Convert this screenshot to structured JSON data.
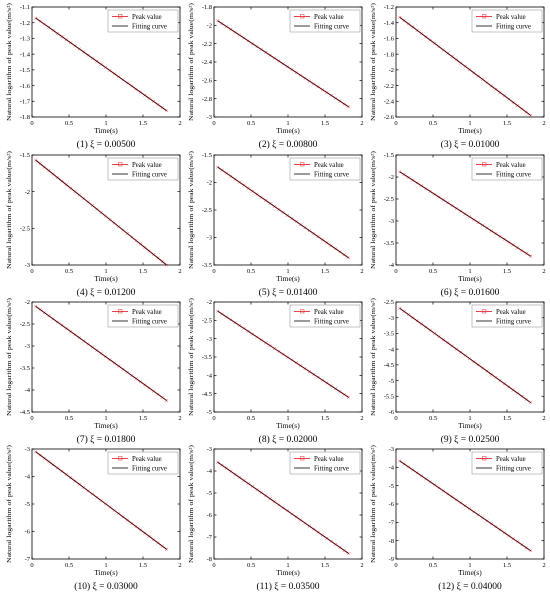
{
  "figure": {
    "xlabel": "Time(s)",
    "ylabel": "Natural logarithm of peak value(m/s²)",
    "legend": {
      "position": "top-right",
      "peak_label": "Peak value",
      "fit_label": "Fitting curve"
    },
    "colors": {
      "peak": "#e8404a",
      "fit": "#000000",
      "axes": "#000000"
    }
  },
  "chart_data": [
    {
      "type": "line",
      "caption": "(1) ξ = 0.00500",
      "xlim": [
        0,
        2
      ],
      "ylim": [
        -1.8,
        -1.1
      ],
      "xticks": [
        "0",
        "0.5",
        "1",
        "1.5",
        "2"
      ],
      "yticks": [
        "-1.8",
        "-1.7",
        "-1.6",
        "-1.5",
        "-1.4",
        "-1.3",
        "-1.2",
        "-1.1"
      ],
      "series": [
        {
          "name": "Peak value",
          "x": [
            0.05,
            1.82
          ],
          "y": [
            -1.17,
            -1.76
          ]
        },
        {
          "name": "Fitting curve",
          "x": [
            0.05,
            1.82
          ],
          "y": [
            -1.17,
            -1.76
          ]
        }
      ]
    },
    {
      "type": "line",
      "caption": "(2) ξ = 0.00800",
      "xlim": [
        0,
        2
      ],
      "ylim": [
        -3,
        -1.8
      ],
      "xticks": [
        "0",
        "0.5",
        "1",
        "1.5",
        "2"
      ],
      "yticks": [
        "-3",
        "-2.8",
        "-2.6",
        "-2.4",
        "-2.2",
        "-2",
        "-1.8"
      ],
      "series": [
        {
          "name": "Peak value",
          "x": [
            0.05,
            1.82
          ],
          "y": [
            -1.95,
            -2.89
          ]
        },
        {
          "name": "Fitting curve",
          "x": [
            0.05,
            1.82
          ],
          "y": [
            -1.95,
            -2.89
          ]
        }
      ]
    },
    {
      "type": "line",
      "caption": "(3) ξ = 0.01000",
      "xlim": [
        0,
        2
      ],
      "ylim": [
        -2.6,
        -1.2
      ],
      "xticks": [
        "0",
        "0.5",
        "1",
        "1.5",
        "2"
      ],
      "yticks": [
        "-2.6",
        "-2.4",
        "-2.2",
        "-2",
        "-1.8",
        "-1.6",
        "-1.4",
        "-1.2"
      ],
      "series": [
        {
          "name": "Peak value",
          "x": [
            0.05,
            1.82
          ],
          "y": [
            -1.33,
            -2.58
          ]
        },
        {
          "name": "Fitting curve",
          "x": [
            0.05,
            1.82
          ],
          "y": [
            -1.33,
            -2.58
          ]
        }
      ]
    },
    {
      "type": "line",
      "caption": "(4) ξ = 0.01200",
      "xlim": [
        0,
        2
      ],
      "ylim": [
        -3,
        -1.5
      ],
      "xticks": [
        "0",
        "0.5",
        "1",
        "1.5",
        "2"
      ],
      "yticks": [
        "-3",
        "-2.5",
        "-2",
        "-1.5"
      ],
      "series": [
        {
          "name": "Peak value",
          "x": [
            0.05,
            1.82
          ],
          "y": [
            -1.57,
            -3.0
          ]
        },
        {
          "name": "Fitting curve",
          "x": [
            0.05,
            1.82
          ],
          "y": [
            -1.57,
            -3.0
          ]
        }
      ]
    },
    {
      "type": "line",
      "caption": "(5) ξ = 0.01400",
      "xlim": [
        0,
        2
      ],
      "ylim": [
        -3.5,
        -1.5
      ],
      "xticks": [
        "0",
        "0.5",
        "1",
        "1.5",
        "2"
      ],
      "yticks": [
        "-3.5",
        "-3",
        "-2.5",
        "-2",
        "-1.5"
      ],
      "series": [
        {
          "name": "Peak value",
          "x": [
            0.05,
            1.82
          ],
          "y": [
            -1.72,
            -3.37
          ]
        },
        {
          "name": "Fitting curve",
          "x": [
            0.05,
            1.82
          ],
          "y": [
            -1.72,
            -3.37
          ]
        }
      ]
    },
    {
      "type": "line",
      "caption": "(6) ξ = 0.01600",
      "xlim": [
        0,
        2
      ],
      "ylim": [
        -4,
        -1.5
      ],
      "xticks": [
        "0",
        "0.5",
        "1",
        "1.5",
        "2"
      ],
      "yticks": [
        "-4",
        "-3.5",
        "-3",
        "-2.5",
        "-2",
        "-1.5"
      ],
      "series": [
        {
          "name": "Peak value",
          "x": [
            0.05,
            1.82
          ],
          "y": [
            -1.88,
            -3.8
          ]
        },
        {
          "name": "Fitting curve",
          "x": [
            0.05,
            1.82
          ],
          "y": [
            -1.88,
            -3.8
          ]
        }
      ]
    },
    {
      "type": "line",
      "caption": "(7) ξ = 0.01800",
      "xlim": [
        0,
        2
      ],
      "ylim": [
        -4.5,
        -2
      ],
      "xticks": [
        "0",
        "0.5",
        "1",
        "1.5",
        "2"
      ],
      "yticks": [
        "-4.5",
        "-4",
        "-3.5",
        "-3",
        "-2.5",
        "-2"
      ],
      "series": [
        {
          "name": "Peak value",
          "x": [
            0.05,
            1.82
          ],
          "y": [
            -2.1,
            -4.24
          ]
        },
        {
          "name": "Fitting curve",
          "x": [
            0.05,
            1.82
          ],
          "y": [
            -2.1,
            -4.24
          ]
        }
      ]
    },
    {
      "type": "line",
      "caption": "(8) ξ = 0.02000",
      "xlim": [
        0,
        2
      ],
      "ylim": [
        -5,
        -2
      ],
      "xticks": [
        "0",
        "0.5",
        "1",
        "1.5",
        "2"
      ],
      "yticks": [
        "-5",
        "-4.5",
        "-4",
        "-3.5",
        "-3",
        "-2.5",
        "-2"
      ],
      "series": [
        {
          "name": "Peak value",
          "x": [
            0.05,
            1.82
          ],
          "y": [
            -2.25,
            -4.6
          ]
        },
        {
          "name": "Fitting curve",
          "x": [
            0.05,
            1.82
          ],
          "y": [
            -2.25,
            -4.6
          ]
        }
      ]
    },
    {
      "type": "line",
      "caption": "(9) ξ = 0.02500",
      "xlim": [
        0,
        2
      ],
      "ylim": [
        -6,
        -2.5
      ],
      "xticks": [
        "0",
        "0.5",
        "1",
        "1.5",
        "2"
      ],
      "yticks": [
        "-6",
        "-5.5",
        "-5",
        "-4.5",
        "-4",
        "-3.5",
        "-3",
        "-2.5"
      ],
      "series": [
        {
          "name": "Peak value",
          "x": [
            0.05,
            1.82
          ],
          "y": [
            -2.7,
            -5.7
          ]
        },
        {
          "name": "Fitting curve",
          "x": [
            0.05,
            1.82
          ],
          "y": [
            -2.7,
            -5.7
          ]
        }
      ]
    },
    {
      "type": "line",
      "caption": "(10) ξ = 0.03000",
      "xlim": [
        0,
        2
      ],
      "ylim": [
        -7,
        -3
      ],
      "xticks": [
        "0",
        "0.5",
        "1",
        "1.5",
        "2"
      ],
      "yticks": [
        "-7",
        "-6",
        "-5",
        "-4",
        "-3"
      ],
      "series": [
        {
          "name": "Peak value",
          "x": [
            0.05,
            1.82
          ],
          "y": [
            -3.1,
            -6.65
          ]
        },
        {
          "name": "Fitting curve",
          "x": [
            0.05,
            1.82
          ],
          "y": [
            -3.1,
            -6.65
          ]
        }
      ]
    },
    {
      "type": "line",
      "caption": "(11) ξ = 0.03500",
      "xlim": [
        0,
        2
      ],
      "ylim": [
        -8,
        -3
      ],
      "xticks": [
        "0",
        "0.5",
        "1",
        "1.5",
        "2"
      ],
      "yticks": [
        "-8",
        "-7",
        "-6",
        "-5",
        "-4",
        "-3"
      ],
      "series": [
        {
          "name": "Peak value",
          "x": [
            0.05,
            1.82
          ],
          "y": [
            -3.6,
            -7.75
          ]
        },
        {
          "name": "Fitting curve",
          "x": [
            0.05,
            1.82
          ],
          "y": [
            -3.6,
            -7.75
          ]
        }
      ]
    },
    {
      "type": "line",
      "caption": "(12) ξ = 0.04000",
      "xlim": [
        0,
        2
      ],
      "ylim": [
        -9,
        -3
      ],
      "xticks": [
        "0",
        "0.5",
        "1",
        "1.5",
        "2"
      ],
      "yticks": [
        "-9",
        "-8",
        "-7",
        "-6",
        "-5",
        "-4",
        "-3"
      ],
      "series": [
        {
          "name": "Peak value",
          "x": [
            0.05,
            1.82
          ],
          "y": [
            -3.65,
            -8.55
          ]
        },
        {
          "name": "Fitting curve",
          "x": [
            0.05,
            1.82
          ],
          "y": [
            -3.65,
            -8.55
          ]
        }
      ]
    }
  ]
}
